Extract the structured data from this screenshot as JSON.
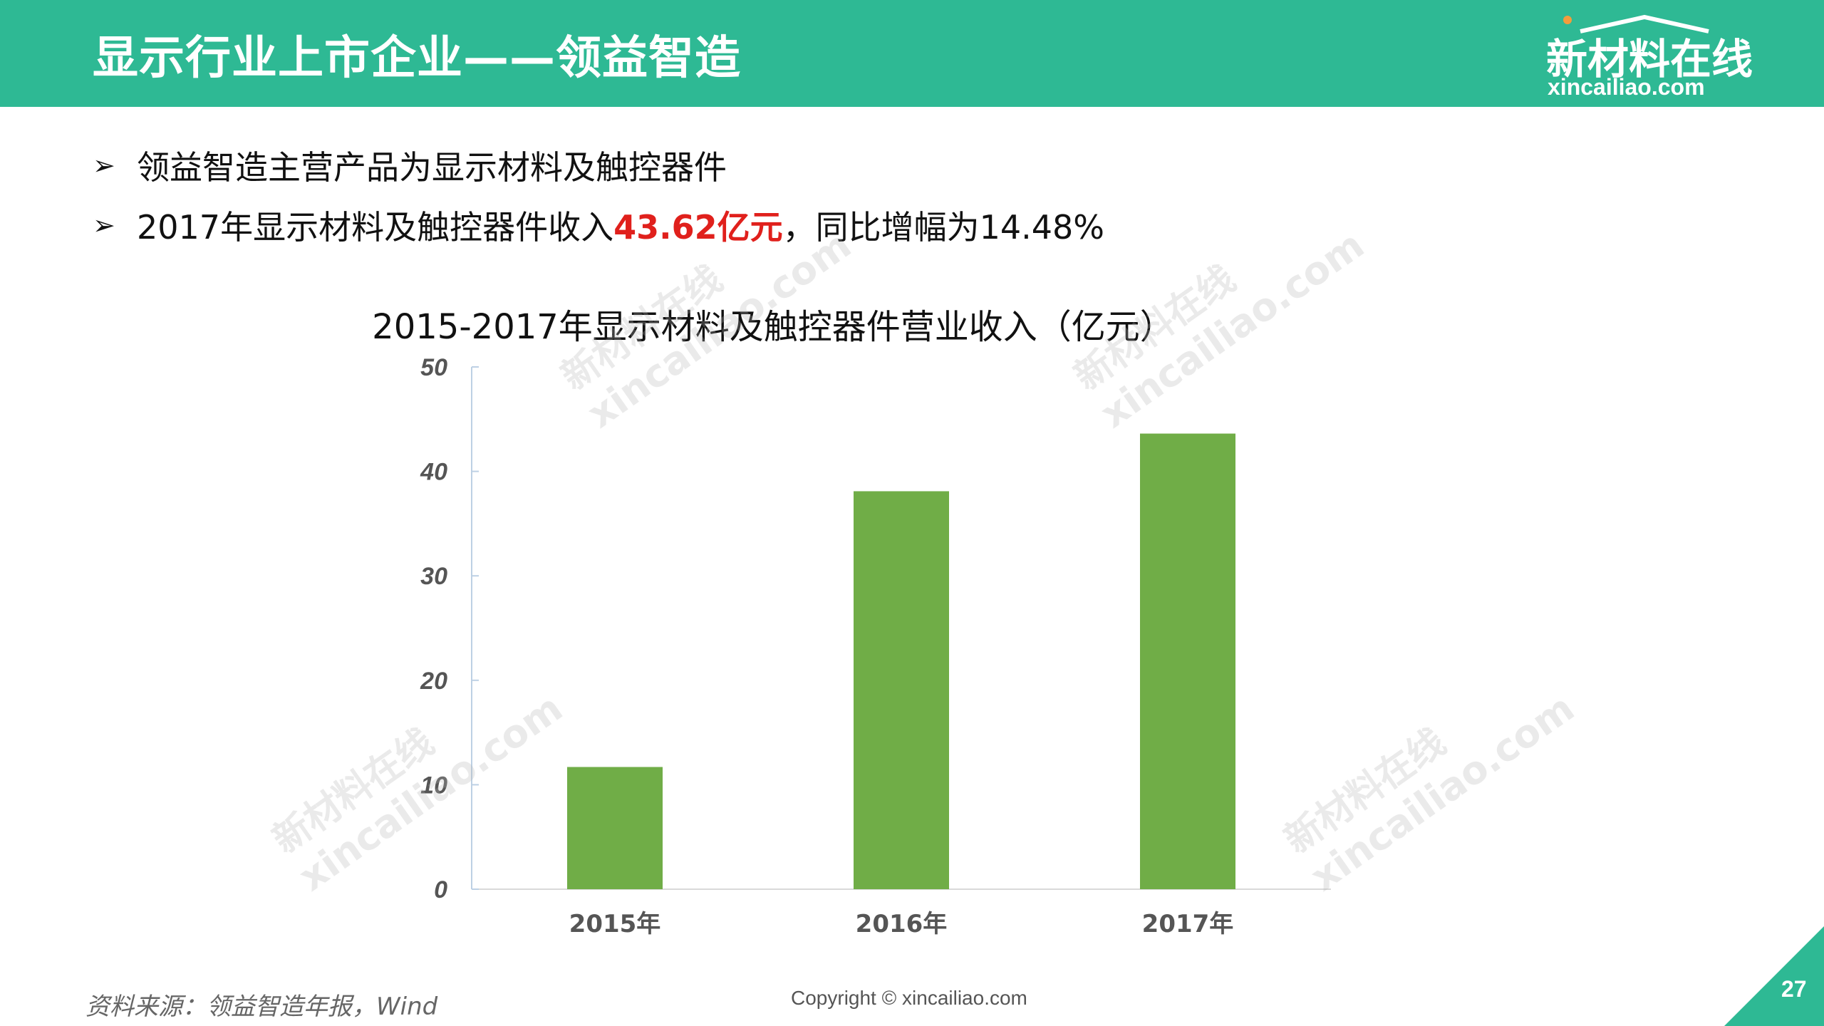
{
  "header": {
    "title": "显示行业上市企业——领益智造",
    "logo_cn": "新材料在线",
    "logo_en": "xincailiao.com"
  },
  "bullets": [
    {
      "text": "领益智造主营产品为显示材料及触控器件"
    },
    {
      "prefix": "2017年显示材料及触控器件收入",
      "highlight": "43.62亿元",
      "suffix": "，同比增幅为14.48%"
    }
  ],
  "chart_data": {
    "type": "bar",
    "title": "2015-2017年显示材料及触控器件营业收入（亿元）",
    "categories": [
      "2015年",
      "2016年",
      "2017年"
    ],
    "values": [
      11.7,
      38.1,
      43.62
    ],
    "ylim": [
      0,
      50
    ],
    "yticks": [
      0,
      10,
      20,
      30,
      40,
      50
    ],
    "bar_color": "#70ad47",
    "grid": false
  },
  "footer": {
    "source": "资料来源：领益智造年报，Wind",
    "copyright": "Copyright © xincailiao.com",
    "page_number": "27"
  },
  "watermark": {
    "cn": "新材料在线",
    "en": "xincailiao.com"
  },
  "colors": {
    "brand": "#2eb994",
    "highlight": "#e0201c"
  }
}
